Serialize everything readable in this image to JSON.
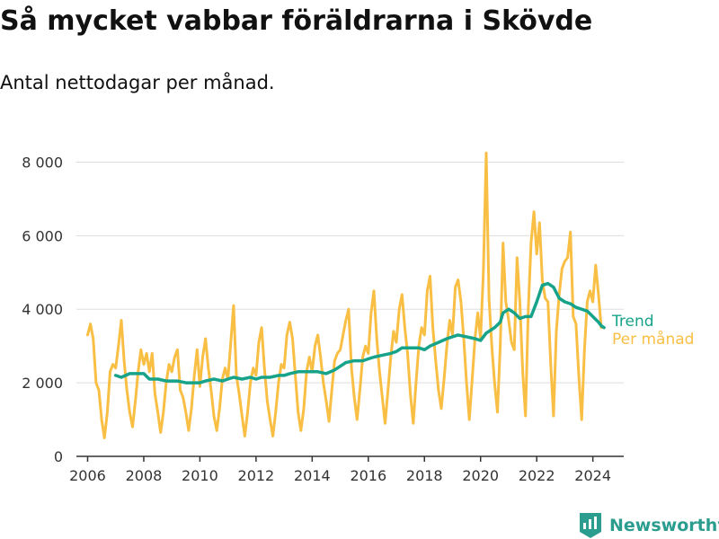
{
  "title": "Så mycket vabbar föräldrarna i Skövde",
  "subtitle": "Antal nettodagar per månad.",
  "brand": "Newsworthy",
  "colors": {
    "trend": "#16a38a",
    "monthly": "#f9bf45",
    "grid": "#dddddd",
    "axis": "#333333",
    "brand": "#2a9d8f"
  },
  "chart_data": {
    "type": "line",
    "x_range": [
      2005.6,
      2025.1
    ],
    "ylim": [
      0,
      8500
    ],
    "grid": true,
    "legend_position": "right-end-labels",
    "x_ticks": [
      {
        "value": 2006,
        "label": "2006"
      },
      {
        "value": 2008,
        "label": "2008"
      },
      {
        "value": 2010,
        "label": "2010"
      },
      {
        "value": 2012,
        "label": "2012"
      },
      {
        "value": 2014,
        "label": "2014"
      },
      {
        "value": 2016,
        "label": "2016"
      },
      {
        "value": 2018,
        "label": "2018"
      },
      {
        "value": 2020,
        "label": "2020"
      },
      {
        "value": 2022,
        "label": "2022"
      },
      {
        "value": 2024,
        "label": "2024"
      }
    ],
    "y_ticks": [
      {
        "value": 0,
        "label": "0"
      },
      {
        "value": 2000,
        "label": "2 000"
      },
      {
        "value": 4000,
        "label": "4 000"
      },
      {
        "value": 6000,
        "label": "6 000"
      },
      {
        "value": 8000,
        "label": "8 000"
      }
    ],
    "series": [
      {
        "name": "Per månad",
        "color": "#f9bf45",
        "points": [
          [
            2006.0,
            3300
          ],
          [
            2006.1,
            3600
          ],
          [
            2006.2,
            3200
          ],
          [
            2006.3,
            2000
          ],
          [
            2006.4,
            1800
          ],
          [
            2006.5,
            1000
          ],
          [
            2006.6,
            500
          ],
          [
            2006.7,
            1200
          ],
          [
            2006.8,
            2300
          ],
          [
            2006.9,
            2500
          ],
          [
            2007.0,
            2400
          ],
          [
            2007.1,
            3000
          ],
          [
            2007.2,
            3700
          ],
          [
            2007.3,
            2600
          ],
          [
            2007.4,
            1800
          ],
          [
            2007.5,
            1200
          ],
          [
            2007.6,
            800
          ],
          [
            2007.7,
            1500
          ],
          [
            2007.8,
            2300
          ],
          [
            2007.9,
            2900
          ],
          [
            2008.0,
            2500
          ],
          [
            2008.1,
            2800
          ],
          [
            2008.2,
            2300
          ],
          [
            2008.3,
            2800
          ],
          [
            2008.4,
            1700
          ],
          [
            2008.5,
            1200
          ],
          [
            2008.6,
            650
          ],
          [
            2008.7,
            1200
          ],
          [
            2008.8,
            2000
          ],
          [
            2008.9,
            2500
          ],
          [
            2009.0,
            2300
          ],
          [
            2009.1,
            2700
          ],
          [
            2009.2,
            2900
          ],
          [
            2009.3,
            1800
          ],
          [
            2009.4,
            1600
          ],
          [
            2009.5,
            1200
          ],
          [
            2009.6,
            700
          ],
          [
            2009.7,
            1300
          ],
          [
            2009.8,
            2200
          ],
          [
            2009.9,
            2900
          ],
          [
            2010.0,
            1900
          ],
          [
            2010.1,
            2700
          ],
          [
            2010.2,
            3200
          ],
          [
            2010.3,
            2400
          ],
          [
            2010.4,
            1800
          ],
          [
            2010.5,
            1100
          ],
          [
            2010.6,
            700
          ],
          [
            2010.7,
            1300
          ],
          [
            2010.8,
            2100
          ],
          [
            2010.9,
            2400
          ],
          [
            2011.0,
            2100
          ],
          [
            2011.1,
            3100
          ],
          [
            2011.2,
            4100
          ],
          [
            2011.3,
            2200
          ],
          [
            2011.4,
            1700
          ],
          [
            2011.5,
            1100
          ],
          [
            2011.6,
            550
          ],
          [
            2011.7,
            1200
          ],
          [
            2011.8,
            2000
          ],
          [
            2011.9,
            2400
          ],
          [
            2012.0,
            2200
          ],
          [
            2012.1,
            3100
          ],
          [
            2012.2,
            3500
          ],
          [
            2012.3,
            2400
          ],
          [
            2012.4,
            1500
          ],
          [
            2012.5,
            1000
          ],
          [
            2012.6,
            550
          ],
          [
            2012.7,
            1200
          ],
          [
            2012.8,
            2000
          ],
          [
            2012.9,
            2500
          ],
          [
            2013.0,
            2400
          ],
          [
            2013.1,
            3300
          ],
          [
            2013.2,
            3650
          ],
          [
            2013.3,
            3200
          ],
          [
            2013.4,
            2200
          ],
          [
            2013.5,
            1200
          ],
          [
            2013.6,
            700
          ],
          [
            2013.7,
            1300
          ],
          [
            2013.8,
            2300
          ],
          [
            2013.9,
            2700
          ],
          [
            2014.0,
            2300
          ],
          [
            2014.1,
            3000
          ],
          [
            2014.2,
            3300
          ],
          [
            2014.3,
            2700
          ],
          [
            2014.4,
            2000
          ],
          [
            2014.5,
            1500
          ],
          [
            2014.6,
            950
          ],
          [
            2014.7,
            1800
          ],
          [
            2014.8,
            2600
          ],
          [
            2014.9,
            2800
          ],
          [
            2015.0,
            2900
          ],
          [
            2015.1,
            3300
          ],
          [
            2015.2,
            3700
          ],
          [
            2015.3,
            4000
          ],
          [
            2015.4,
            2400
          ],
          [
            2015.5,
            1600
          ],
          [
            2015.6,
            1000
          ],
          [
            2015.7,
            1800
          ],
          [
            2015.8,
            2700
          ],
          [
            2015.9,
            3000
          ],
          [
            2016.0,
            2800
          ],
          [
            2016.1,
            3900
          ],
          [
            2016.2,
            4500
          ],
          [
            2016.3,
            3200
          ],
          [
            2016.4,
            2300
          ],
          [
            2016.5,
            1600
          ],
          [
            2016.6,
            900
          ],
          [
            2016.7,
            1800
          ],
          [
            2016.8,
            2700
          ],
          [
            2016.9,
            3400
          ],
          [
            2017.0,
            3100
          ],
          [
            2017.1,
            4000
          ],
          [
            2017.2,
            4400
          ],
          [
            2017.3,
            3500
          ],
          [
            2017.4,
            2800
          ],
          [
            2017.5,
            1700
          ],
          [
            2017.6,
            900
          ],
          [
            2017.7,
            2000
          ],
          [
            2017.8,
            3000
          ],
          [
            2017.9,
            3500
          ],
          [
            2018.0,
            3300
          ],
          [
            2018.1,
            4500
          ],
          [
            2018.2,
            4900
          ],
          [
            2018.3,
            3500
          ],
          [
            2018.4,
            2600
          ],
          [
            2018.5,
            1800
          ],
          [
            2018.6,
            1300
          ],
          [
            2018.7,
            2100
          ],
          [
            2018.8,
            3000
          ],
          [
            2018.9,
            3700
          ],
          [
            2019.0,
            3300
          ],
          [
            2019.1,
            4600
          ],
          [
            2019.2,
            4800
          ],
          [
            2019.3,
            4200
          ],
          [
            2019.4,
            3200
          ],
          [
            2019.5,
            2000
          ],
          [
            2019.6,
            1000
          ],
          [
            2019.7,
            2100
          ],
          [
            2019.8,
            3200
          ],
          [
            2019.9,
            3900
          ],
          [
            2020.0,
            3200
          ],
          [
            2020.1,
            5000
          ],
          [
            2020.2,
            8250
          ],
          [
            2020.3,
            4300
          ],
          [
            2020.4,
            3000
          ],
          [
            2020.5,
            2000
          ],
          [
            2020.6,
            1200
          ],
          [
            2020.7,
            3000
          ],
          [
            2020.8,
            5800
          ],
          [
            2020.9,
            4200
          ],
          [
            2021.0,
            3700
          ],
          [
            2021.1,
            3100
          ],
          [
            2021.2,
            2900
          ],
          [
            2021.3,
            5400
          ],
          [
            2021.4,
            4200
          ],
          [
            2021.5,
            2300
          ],
          [
            2021.6,
            1100
          ],
          [
            2021.7,
            4000
          ],
          [
            2021.8,
            5800
          ],
          [
            2021.9,
            6650
          ],
          [
            2022.0,
            5500
          ],
          [
            2022.1,
            6350
          ],
          [
            2022.2,
            4800
          ],
          [
            2022.3,
            4300
          ],
          [
            2022.4,
            4200
          ],
          [
            2022.5,
            2500
          ],
          [
            2022.6,
            1100
          ],
          [
            2022.7,
            3400
          ],
          [
            2022.8,
            4400
          ],
          [
            2022.9,
            5100
          ],
          [
            2023.0,
            5300
          ],
          [
            2023.1,
            5400
          ],
          [
            2023.2,
            6100
          ],
          [
            2023.3,
            3800
          ],
          [
            2023.4,
            3600
          ],
          [
            2023.5,
            2200
          ],
          [
            2023.6,
            1000
          ],
          [
            2023.7,
            2900
          ],
          [
            2023.8,
            4200
          ],
          [
            2023.9,
            4500
          ],
          [
            2024.0,
            4200
          ],
          [
            2024.1,
            5200
          ],
          [
            2024.2,
            4400
          ],
          [
            2024.3,
            3500
          ]
        ]
      },
      {
        "name": "Trend",
        "color": "#16a38a",
        "points": [
          [
            2007.0,
            2200
          ],
          [
            2007.2,
            2150
          ],
          [
            2007.5,
            2250
          ],
          [
            2007.8,
            2250
          ],
          [
            2008.0,
            2250
          ],
          [
            2008.2,
            2100
          ],
          [
            2008.5,
            2100
          ],
          [
            2008.8,
            2050
          ],
          [
            2009.0,
            2050
          ],
          [
            2009.2,
            2050
          ],
          [
            2009.5,
            2000
          ],
          [
            2009.8,
            2000
          ],
          [
            2010.0,
            2000
          ],
          [
            2010.2,
            2050
          ],
          [
            2010.5,
            2100
          ],
          [
            2010.8,
            2050
          ],
          [
            2011.0,
            2100
          ],
          [
            2011.2,
            2150
          ],
          [
            2011.5,
            2100
          ],
          [
            2011.8,
            2150
          ],
          [
            2012.0,
            2100
          ],
          [
            2012.2,
            2150
          ],
          [
            2012.5,
            2150
          ],
          [
            2012.8,
            2200
          ],
          [
            2013.0,
            2200
          ],
          [
            2013.2,
            2250
          ],
          [
            2013.5,
            2300
          ],
          [
            2013.8,
            2300
          ],
          [
            2014.0,
            2300
          ],
          [
            2014.2,
            2300
          ],
          [
            2014.5,
            2250
          ],
          [
            2014.8,
            2350
          ],
          [
            2015.0,
            2450
          ],
          [
            2015.2,
            2550
          ],
          [
            2015.5,
            2600
          ],
          [
            2015.8,
            2600
          ],
          [
            2016.0,
            2650
          ],
          [
            2016.2,
            2700
          ],
          [
            2016.5,
            2750
          ],
          [
            2016.8,
            2800
          ],
          [
            2017.0,
            2850
          ],
          [
            2017.2,
            2950
          ],
          [
            2017.5,
            2950
          ],
          [
            2017.8,
            2950
          ],
          [
            2018.0,
            2900
          ],
          [
            2018.2,
            3000
          ],
          [
            2018.5,
            3100
          ],
          [
            2018.8,
            3200
          ],
          [
            2019.0,
            3250
          ],
          [
            2019.2,
            3300
          ],
          [
            2019.5,
            3250
          ],
          [
            2019.8,
            3200
          ],
          [
            2020.0,
            3150
          ],
          [
            2020.2,
            3350
          ],
          [
            2020.5,
            3500
          ],
          [
            2020.7,
            3650
          ],
          [
            2020.8,
            3900
          ],
          [
            2021.0,
            4000
          ],
          [
            2021.2,
            3900
          ],
          [
            2021.4,
            3750
          ],
          [
            2021.6,
            3800
          ],
          [
            2021.8,
            3800
          ],
          [
            2022.0,
            4200
          ],
          [
            2022.2,
            4650
          ],
          [
            2022.4,
            4700
          ],
          [
            2022.6,
            4600
          ],
          [
            2022.8,
            4300
          ],
          [
            2023.0,
            4200
          ],
          [
            2023.2,
            4150
          ],
          [
            2023.4,
            4050
          ],
          [
            2023.6,
            4000
          ],
          [
            2023.8,
            3950
          ],
          [
            2024.0,
            3800
          ],
          [
            2024.2,
            3650
          ],
          [
            2024.3,
            3550
          ],
          [
            2024.4,
            3500
          ]
        ]
      }
    ]
  }
}
